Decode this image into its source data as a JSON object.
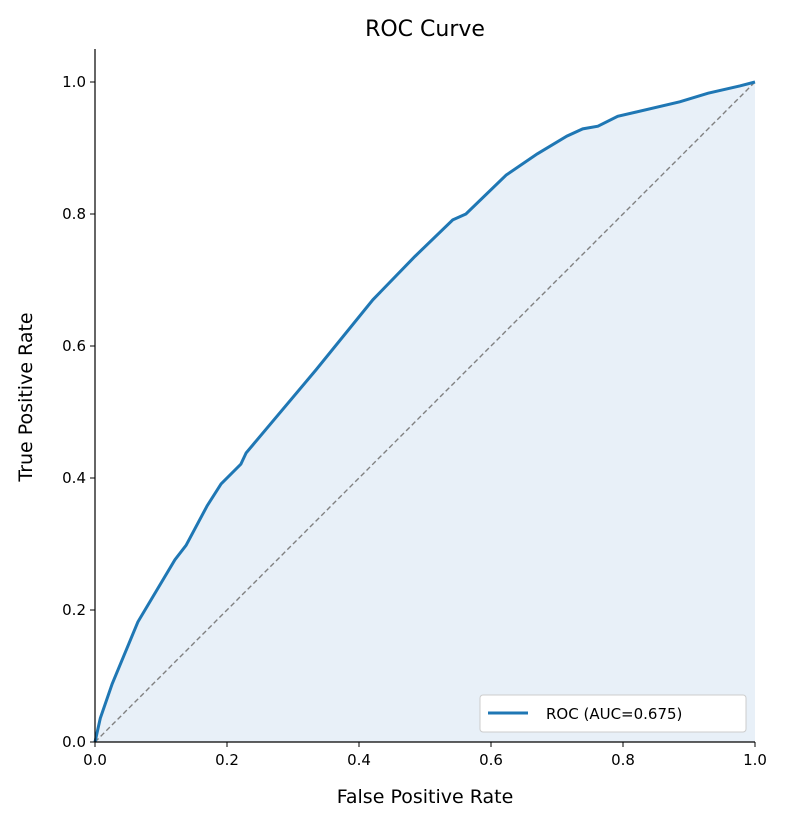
{
  "chart_data": {
    "type": "line",
    "title": "ROC Curve",
    "xlabel": "False Positive Rate",
    "ylabel": "True Positive Rate",
    "xlim": [
      0,
      1
    ],
    "ylim": [
      0,
      1.05
    ],
    "xticks": [
      "0.0",
      "0.2",
      "0.4",
      "0.6",
      "0.8",
      "1.0"
    ],
    "yticks": [
      "0.0",
      "0.2",
      "0.4",
      "0.6",
      "0.8",
      "1.0"
    ],
    "grid": false,
    "legend_position": "bottom-right",
    "colors": {
      "roc": "#1f77b4",
      "fill": "#e8f0f8",
      "diagonal": "#808080"
    },
    "series": [
      {
        "name": "ROC (AUC=0.675)",
        "x": [
          0,
          0.008,
          0.026,
          0.065,
          0.121,
          0.138,
          0.17,
          0.191,
          0.221,
          0.229,
          0.335,
          0.421,
          0.485,
          0.542,
          0.562,
          0.623,
          0.67,
          0.715,
          0.739,
          0.762,
          0.792,
          0.886,
          0.929,
          0.977,
          1.0
        ],
        "y": [
          0,
          0.036,
          0.088,
          0.182,
          0.276,
          0.298,
          0.358,
          0.391,
          0.421,
          0.438,
          0.564,
          0.67,
          0.736,
          0.791,
          0.8,
          0.859,
          0.891,
          0.918,
          0.929,
          0.933,
          0.948,
          0.97,
          0.983,
          0.994,
          1.0
        ]
      }
    ],
    "reference_line": {
      "x": [
        0,
        1
      ],
      "y": [
        0,
        1
      ],
      "style": "dashed"
    }
  }
}
